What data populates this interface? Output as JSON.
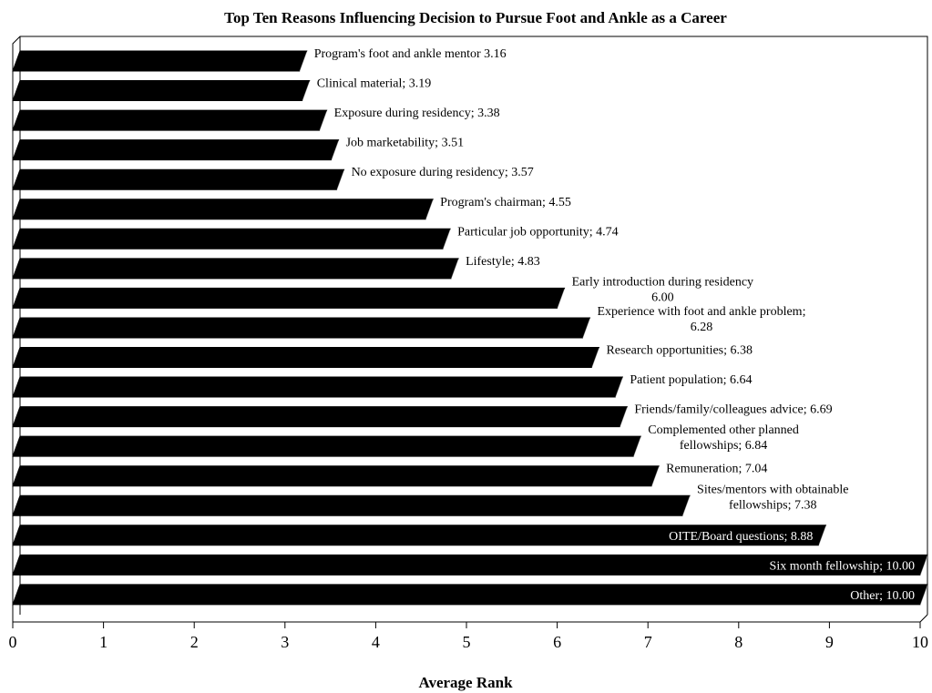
{
  "chart_data": {
    "type": "bar",
    "orientation": "horizontal",
    "title": "Top Ten Reasons Influencing Decision to Pursue Foot and Ankle as a Career",
    "xlabel": "Average Rank",
    "xlim": [
      0,
      10
    ],
    "xticks": [
      "0",
      "1",
      "2",
      "3",
      "4",
      "5",
      "6",
      "7",
      "8",
      "9",
      "10"
    ],
    "grid": false,
    "bar_color": "#000000",
    "series": [
      {
        "values": [
          3.16,
          3.19,
          3.38,
          3.51,
          3.57,
          4.55,
          4.74,
          4.83,
          6.0,
          6.28,
          6.38,
          6.64,
          6.69,
          6.84,
          7.04,
          7.38,
          8.88,
          10.0,
          10.0
        ]
      }
    ],
    "data_labels": [
      [
        "Program's foot and ankle mentor 3.16"
      ],
      [
        "Clinical material; 3.19"
      ],
      [
        "Exposure during residency; 3.38"
      ],
      [
        "Job marketability; 3.51"
      ],
      [
        "No exposure during residency; 3.57"
      ],
      [
        "Program's chairman; 4.55"
      ],
      [
        "Particular job opportunity; 4.74"
      ],
      [
        "Lifestyle; 4.83"
      ],
      [
        "Early introduction during residency",
        "6.00"
      ],
      [
        "Experience with foot and ankle problem;",
        "6.28"
      ],
      [
        "Research opportunities; 6.38"
      ],
      [
        "Patient population; 6.64"
      ],
      [
        "Friends/family/colleagues advice; 6.69"
      ],
      [
        "Complemented other planned",
        "fellowships; 6.84"
      ],
      [
        "Remuneration; 7.04"
      ],
      [
        "Sites/mentors with obtainable",
        "fellowships; 7.38"
      ],
      [
        "OITE/Board questions; 8.88"
      ],
      [
        "Six month fellowship; 10.00"
      ],
      [
        "Other; 10.00"
      ]
    ]
  }
}
